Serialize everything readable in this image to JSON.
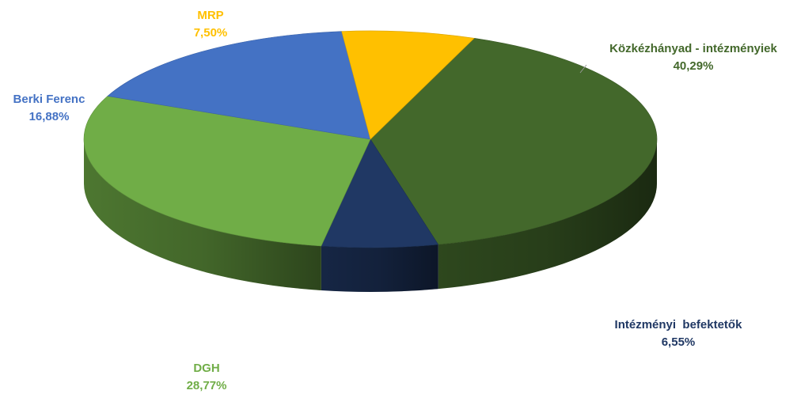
{
  "chart_data": {
    "type": "pie",
    "style": "3d",
    "title": "",
    "slices": [
      {
        "name": "Közkézhányad - intézményiek",
        "value": 40.29,
        "value_label": "40,29%",
        "color": "#43682b"
      },
      {
        "name": "Intézményi  befektetők",
        "value": 6.55,
        "value_label": "6,55%",
        "color": "#203864"
      },
      {
        "name": "DGH",
        "value": 28.77,
        "value_label": "28,77%",
        "color": "#70ad47"
      },
      {
        "name": "Berki Ferenc",
        "value": 16.88,
        "value_label": "16,88%",
        "color": "#4472c4"
      },
      {
        "name": "MRP",
        "value": 7.5,
        "value_label": "7,50%",
        "color": "#ffc000"
      }
    ]
  }
}
